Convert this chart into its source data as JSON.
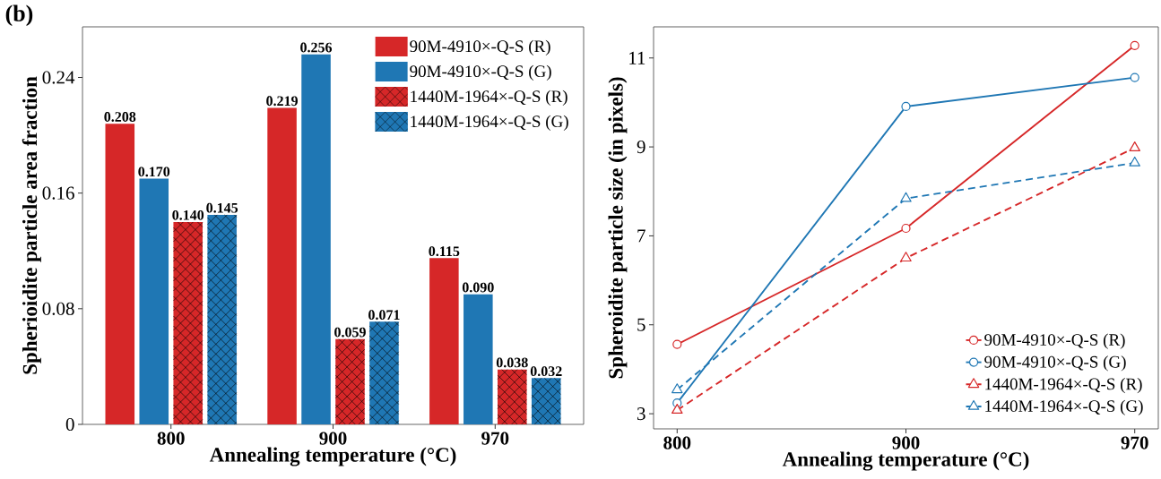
{
  "chart_data": [
    {
      "type": "bar",
      "xlabel": "Annealing temperature (°C)",
      "ylabel": "Spherioidite particle area fraction",
      "annotations": [
        "(b)"
      ],
      "categories": [
        "800",
        "900",
        "970"
      ],
      "ylim": [
        0,
        0.275
      ],
      "yticks": [
        0,
        0.08,
        0.16,
        0.24
      ],
      "legend": "top right",
      "series": [
        {
          "name": "90M-4910×-Q-S (R)",
          "color": "#d62728",
          "values": [
            0.208,
            0.219,
            0.115
          ],
          "value_labels": [
            "0.208",
            "0.219",
            "0.115"
          ]
        },
        {
          "name": "90M-4910×-Q-S (G)",
          "color": "#1f77b4",
          "values": [
            0.17,
            0.256,
            0.09
          ],
          "value_labels": [
            "0.170",
            "0.256",
            "0.090"
          ]
        },
        {
          "name": "1440M-1964×-Q-S (R)",
          "color": "#d62728",
          "values": [
            0.14,
            0.059,
            0.038
          ],
          "value_labels": [
            "0.140",
            "0.059",
            "0.038"
          ]
        },
        {
          "name": "1440M-1964×-Q-S (G)",
          "color": "#1f77b4",
          "values": [
            0.145,
            0.071,
            0.032
          ],
          "value_labels": [
            "0.145",
            "0.071",
            "0.032"
          ]
        }
      ]
    },
    {
      "type": "line",
      "xlabel": "Annealing temperature (°C)",
      "ylabel": "Spheroidite particle size (in pixels)",
      "categories": [
        "800",
        "900",
        "970"
      ],
      "ylim": [
        2.66,
        11.7
      ],
      "yticks": [
        3,
        5,
        7,
        9,
        11
      ],
      "legend": "bottom right",
      "series": [
        {
          "name": "90M-4910×-Q-S (R)",
          "color": "#d62728",
          "values": [
            4.56,
            7.17,
            11.28
          ],
          "marker": "circle",
          "line_style": "solid"
        },
        {
          "name": "90M-4910×-Q-S (G)",
          "color": "#1f77b4",
          "values": [
            3.24,
            9.91,
            10.56
          ],
          "marker": "circle",
          "line_style": "solid"
        },
        {
          "name": "1440M-1964×-Q-S (R)",
          "color": "#d62728",
          "values": [
            3.08,
            6.5,
            8.98
          ],
          "marker": "triangle",
          "line_style": "dashed"
        },
        {
          "name": "1440M-1964×-Q-S (G)",
          "color": "#1f77b4",
          "values": [
            3.54,
            7.84,
            8.64
          ],
          "marker": "triangle",
          "line_style": "dashed"
        }
      ]
    }
  ]
}
